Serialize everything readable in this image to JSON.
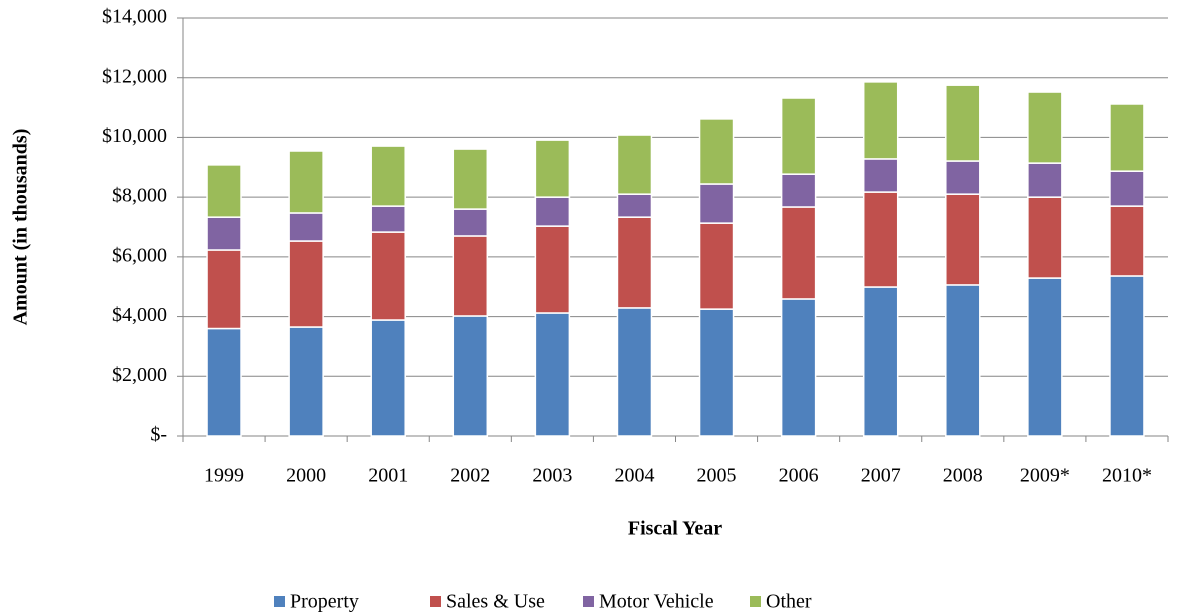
{
  "chart_data": {
    "type": "stacked_bar",
    "ylabel": "Amount (in thousands)",
    "xlabel": "Fiscal Year",
    "categories": [
      "1999",
      "2000",
      "2001",
      "2002",
      "2003",
      "2004",
      "2005",
      "2006",
      "2007",
      "2008",
      "2009*",
      "2010*"
    ],
    "series": [
      {
        "name": "Property",
        "color": "#4f81bd",
        "values": [
          3600,
          3650,
          3885,
          4020,
          4120,
          4290,
          4250,
          4590,
          4990,
          5060,
          5290,
          5360
        ]
      },
      {
        "name": "Sales & Use",
        "color": "#c0504d",
        "values": [
          2630,
          2880,
          2945,
          2680,
          2910,
          3040,
          2880,
          3080,
          3180,
          3040,
          2710,
          2340
        ]
      },
      {
        "name": "Motor Vehicle",
        "color": "#8064a2",
        "values": [
          1100,
          940,
          870,
          900,
          970,
          770,
          1310,
          1100,
          1110,
          1110,
          1140,
          1170
        ]
      },
      {
        "name": "Other",
        "color": "#9bbb59",
        "values": [
          1750,
          2075,
          2010,
          2010,
          1910,
          1980,
          2180,
          2550,
          2580,
          2540,
          2380,
          2250
        ]
      }
    ],
    "ylim": [
      0,
      14000
    ],
    "yticks": [
      {
        "value": 0,
        "label": "$-"
      },
      {
        "value": 2000,
        "label": "$2,000"
      },
      {
        "value": 4000,
        "label": "$4,000"
      },
      {
        "value": 6000,
        "label": "$6,000"
      },
      {
        "value": 8000,
        "label": "$8,000"
      },
      {
        "value": 10000,
        "label": "$10,000"
      },
      {
        "value": 12000,
        "label": "$12,000"
      },
      {
        "value": 14000,
        "label": "$14,000"
      }
    ],
    "grid": true,
    "legend": "bottom"
  }
}
